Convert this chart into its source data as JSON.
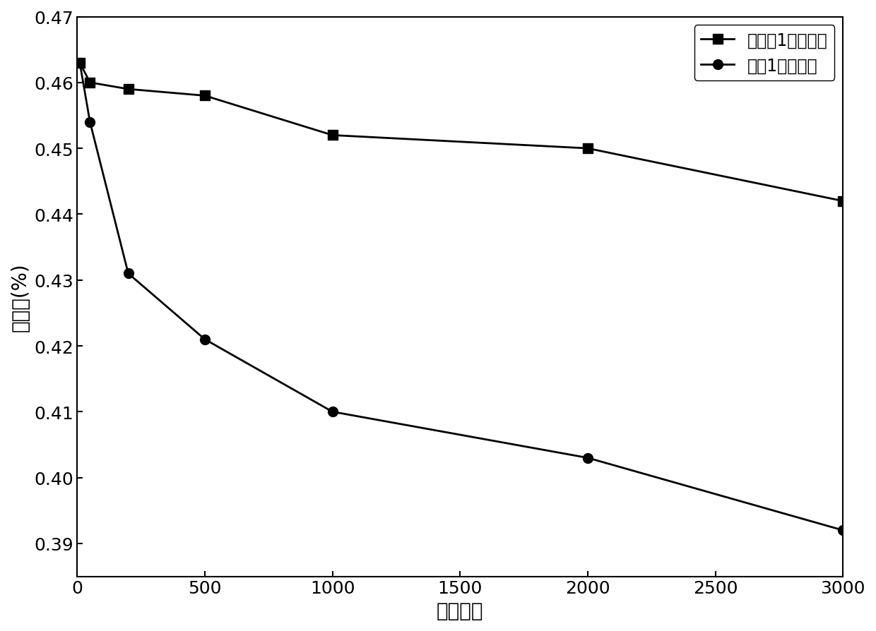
{
  "series1": {
    "x": [
      10,
      50,
      200,
      500,
      1000,
      2000,
      3000
    ],
    "y": [
      0.463,
      0.46,
      0.459,
      0.458,
      0.452,
      0.45,
      0.442
    ],
    "label": "实施例1所述藁膜",
    "marker": "s",
    "color": "#000000",
    "markersize": 10,
    "linewidth": 2.0
  },
  "series2": {
    "x": [
      10,
      50,
      200,
      500,
      1000,
      2000,
      3000
    ],
    "y": [
      0.463,
      0.454,
      0.431,
      0.421,
      0.41,
      0.403,
      0.392
    ],
    "label": "对比1所述藁膜",
    "marker": "o",
    "color": "#000000",
    "markersize": 10,
    "linewidth": 2.0
  },
  "xlabel": "循环次数",
  "ylabel": "反射率(%)",
  "xlim": [
    0,
    3000
  ],
  "ylim": [
    0.385,
    0.47
  ],
  "xticks": [
    0,
    500,
    1000,
    1500,
    2000,
    2500,
    3000
  ],
  "yticks": [
    0.39,
    0.4,
    0.41,
    0.42,
    0.43,
    0.44,
    0.45,
    0.46,
    0.47
  ],
  "background_color": "#ffffff",
  "tick_fontsize": 18,
  "label_fontsize": 20,
  "legend_fontsize": 17
}
